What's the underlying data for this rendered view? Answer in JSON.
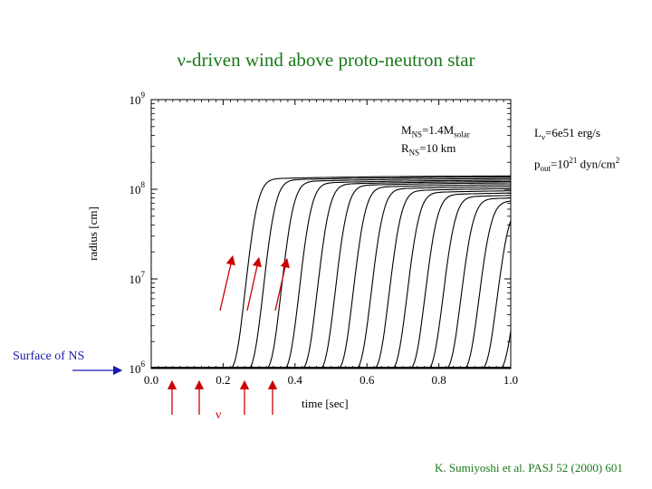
{
  "title": "ν-driven wind above proto-neutron star",
  "annotations": {
    "mass_M": "M",
    "mass_sub1": "NS",
    "mass_mid": "=1.4M",
    "mass_sub2": "solar",
    "radius_R": "R",
    "radius_sub": "NS",
    "radius_rest": "=10 km",
    "lum_L": "L",
    "lum_sub": "ν",
    "lum_rest": "=6e51 erg/s",
    "p_p": "p",
    "p_sub": "out",
    "p_mid": "=10",
    "p_sup": "21",
    "p_unit": " dyn/cm",
    "p_sup2": "2"
  },
  "surface_label": "Surface of NS",
  "neutrino_label": "ν",
  "credit": "K. Sumiyoshi et al. PASJ 52 (2000) 601",
  "colors": {
    "title": "#1a7a1a",
    "surface": "#1a1aaa",
    "arrows": "#cc0000",
    "curves": "#000000"
  },
  "chart_data": {
    "type": "line",
    "xlabel": "time [sec]",
    "ylabel": "radius [cm]",
    "xlim": [
      0.0,
      1.0
    ],
    "ylim": [
      1000000.0,
      1000000000.0
    ],
    "yscale": "log",
    "xticks": [
      "0.0",
      "0.2",
      "0.4",
      "0.6",
      "0.8",
      "1.0"
    ],
    "yticks": [
      {
        "base": "10",
        "exp": "6"
      },
      {
        "base": "10",
        "exp": "7"
      },
      {
        "base": "10",
        "exp": "8"
      },
      {
        "base": "10",
        "exp": "9"
      }
    ],
    "grid": false,
    "description_of_series": "trajectories of mass elements; each starts at 1e6 cm and rises to ~1e8 cm",
    "series": [
      {
        "t0": 0.22,
        "rmax": 142000000.0
      },
      {
        "t0": 0.27,
        "rmax": 138000000.0
      },
      {
        "t0": 0.32,
        "rmax": 133000000.0
      },
      {
        "t0": 0.37,
        "rmax": 128000000.0
      },
      {
        "t0": 0.42,
        "rmax": 124000000.0
      },
      {
        "t0": 0.47,
        "rmax": 120000000.0
      },
      {
        "t0": 0.52,
        "rmax": 115000000.0
      },
      {
        "t0": 0.57,
        "rmax": 110000000.0
      },
      {
        "t0": 0.62,
        "rmax": 105000000.0
      },
      {
        "t0": 0.67,
        "rmax": 100000000.0
      },
      {
        "t0": 0.72,
        "rmax": 95000000.0
      },
      {
        "t0": 0.77,
        "rmax": 90000000.0
      },
      {
        "t0": 0.82,
        "rmax": 85000000.0
      },
      {
        "t0": 0.87,
        "rmax": 80000000.0
      },
      {
        "t0": 0.92,
        "rmax": 75000000.0
      },
      {
        "t0": 0.97,
        "rmax": 70000000.0
      }
    ]
  }
}
